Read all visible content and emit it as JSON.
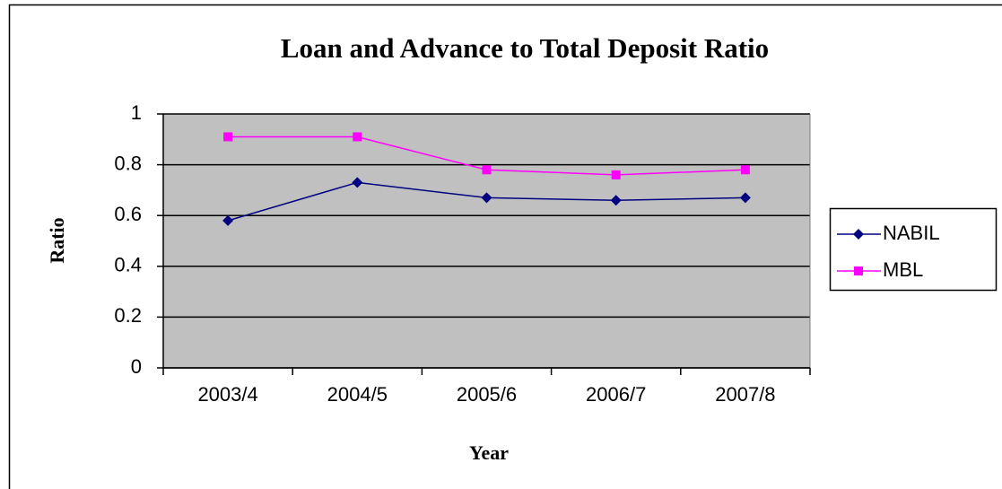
{
  "chart_data": {
    "type": "line",
    "title": "Loan and Advance to Total Deposit Ratio",
    "x_label": "Year",
    "y_label": "Ratio",
    "categories": [
      "2003/4",
      "2004/5",
      "2005/6",
      "2006/7",
      "2007/8"
    ],
    "series": [
      {
        "name": "NABIL",
        "color": "#000080",
        "marker": "diamond",
        "values": [
          0.58,
          0.73,
          0.67,
          0.66,
          0.67
        ]
      },
      {
        "name": "MBL",
        "color": "#ff00ff",
        "marker": "square",
        "values": [
          0.91,
          0.91,
          0.78,
          0.76,
          0.78
        ]
      }
    ],
    "ylim": [
      0,
      1
    ],
    "yticks": [
      0,
      0.2,
      0.4,
      0.6,
      0.8,
      1
    ],
    "grid": true,
    "legend": "right"
  }
}
